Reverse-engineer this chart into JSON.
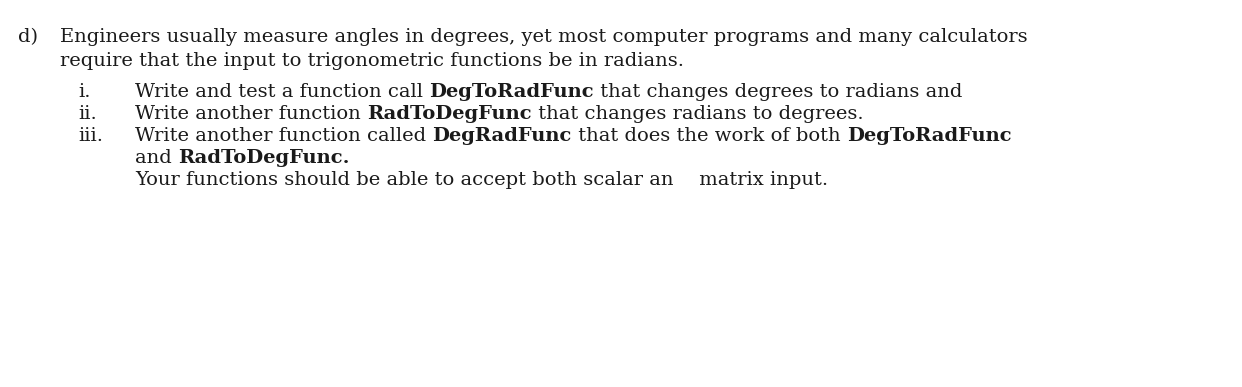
{
  "background_color": "#ffffff",
  "figsize": [
    12.42,
    3.87
  ],
  "dpi": 100,
  "label_d": "d)",
  "line1": "Engineers usually measure angles in degrees, yet most computer programs and many calculators",
  "line2": "require that the input to trigonometric functions be in radians.",
  "roman_i": "i.",
  "roman_ii": "ii.",
  "roman_iii": "iii.",
  "item_i_parts": [
    [
      "Write and test a function call ",
      false
    ],
    [
      "DegToRadFunc",
      true
    ],
    [
      " that changes degrees to radians and",
      false
    ]
  ],
  "item_ii_parts": [
    [
      "Write another function ",
      false
    ],
    [
      "RadToDegFunc",
      true
    ],
    [
      " that changes radians to degrees.",
      false
    ]
  ],
  "item_iii_parts": [
    [
      "Write another function called ",
      false
    ],
    [
      "DegRadFunc",
      true
    ],
    [
      " that does the work of both ",
      false
    ],
    [
      "DegToRadFunc",
      true
    ]
  ],
  "item_iii2_parts": [
    [
      "and ",
      false
    ],
    [
      "RadToDegFunc.",
      true
    ]
  ],
  "item_iv": "Your functions should be able to accept both scalar an  matrix input.",
  "font_size": 14,
  "font_family": "DejaVu Serif",
  "text_color": "#1a1a1a"
}
